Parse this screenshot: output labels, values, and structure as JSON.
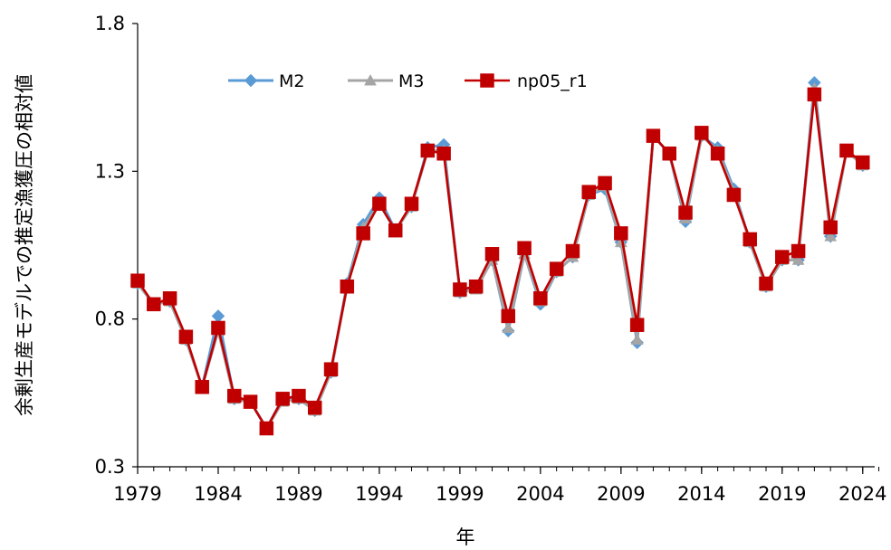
{
  "chart_data": {
    "type": "line",
    "title": "",
    "xlabel": "年",
    "ylabel": "余剰生産モデルでの推定漁獲圧の相対値",
    "xlim": [
      1979,
      2025
    ],
    "ylim": [
      0.3,
      1.8
    ],
    "x_ticks": [
      "1979",
      "1984",
      "1989",
      "1994",
      "1999",
      "2004",
      "2009",
      "2014",
      "2019",
      "2024"
    ],
    "y_ticks": [
      "0.3",
      "0.8",
      "1.3",
      "1.8"
    ],
    "grid": false,
    "legend_position": "top-left",
    "x": [
      1979,
      1980,
      1981,
      1982,
      1983,
      1984,
      1985,
      1986,
      1987,
      1988,
      1989,
      1990,
      1991,
      1992,
      1993,
      1994,
      1995,
      1996,
      1997,
      1998,
      1999,
      2000,
      2001,
      2002,
      2003,
      2004,
      2005,
      2006,
      2007,
      2008,
      2009,
      2010,
      2011,
      2012,
      2013,
      2014,
      2015,
      2016,
      2017,
      2018,
      2019,
      2020,
      2021,
      2022,
      2023,
      2024
    ],
    "series": [
      {
        "name": "M2",
        "color": "#5b9bd5",
        "marker": "diamond",
        "values": [
          0.92,
          0.85,
          0.86,
          0.73,
          0.57,
          0.81,
          0.53,
          0.52,
          0.43,
          0.53,
          0.53,
          0.49,
          0.62,
          0.92,
          1.12,
          1.21,
          1.1,
          1.18,
          1.38,
          1.39,
          0.89,
          0.91,
          1.0,
          0.76,
          1.02,
          0.85,
          0.96,
          1.01,
          1.22,
          1.24,
          1.06,
          0.72,
          1.42,
          1.36,
          1.13,
          1.42,
          1.38,
          1.24,
          1.06,
          0.91,
          1.0,
          1.0,
          1.6,
          1.08,
          1.37,
          1.32
        ]
      },
      {
        "name": "M3",
        "color": "#a5a5a5",
        "marker": "triangle",
        "values": [
          0.92,
          0.85,
          0.86,
          0.73,
          0.57,
          0.76,
          0.53,
          0.52,
          0.43,
          0.52,
          0.53,
          0.49,
          0.62,
          0.91,
          1.11,
          1.19,
          1.1,
          1.18,
          1.37,
          1.37,
          0.89,
          0.9,
          1.0,
          0.77,
          1.02,
          0.86,
          0.96,
          1.01,
          1.22,
          1.25,
          1.06,
          0.73,
          1.42,
          1.36,
          1.14,
          1.42,
          1.37,
          1.23,
          1.06,
          0.91,
          1.0,
          1.0,
          1.58,
          1.08,
          1.37,
          1.32
        ]
      },
      {
        "name": "np05_r1",
        "color": "#c00000",
        "marker": "square",
        "values": [
          0.93,
          0.85,
          0.87,
          0.74,
          0.57,
          0.77,
          0.54,
          0.52,
          0.43,
          0.53,
          0.54,
          0.5,
          0.63,
          0.91,
          1.09,
          1.19,
          1.1,
          1.19,
          1.37,
          1.36,
          0.9,
          0.91,
          1.02,
          0.81,
          1.04,
          0.87,
          0.97,
          1.03,
          1.23,
          1.26,
          1.09,
          0.78,
          1.42,
          1.36,
          1.16,
          1.43,
          1.36,
          1.22,
          1.07,
          0.92,
          1.01,
          1.03,
          1.56,
          1.11,
          1.37,
          1.33
        ]
      }
    ]
  }
}
